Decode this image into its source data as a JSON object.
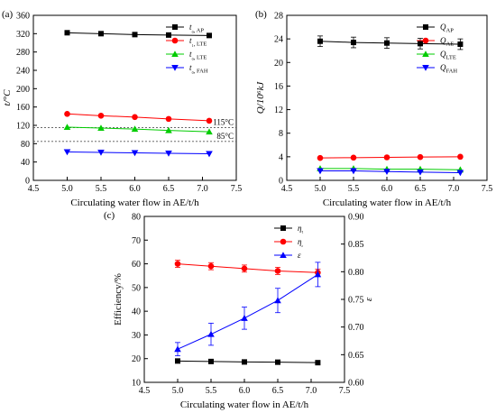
{
  "chart_data": [
    {
      "type": "line",
      "panel_label": "(a)",
      "xlabel": "Circulating water flow in AE/t/h",
      "ylabel": "t/°C",
      "xlim": [
        4.5,
        7.5
      ],
      "ylim": [
        0,
        360
      ],
      "x_ticks": [
        "4.5",
        "5.0",
        "5.5",
        "6.0",
        "6.5",
        "7.0",
        "7.5"
      ],
      "y_ticks": [
        "0",
        "40",
        "80",
        "120",
        "160",
        "200",
        "240",
        "280",
        "320",
        "360"
      ],
      "x": [
        5.0,
        5.5,
        6.0,
        6.5,
        7.1
      ],
      "series": [
        {
          "name": "t₀, AP",
          "marker": "square",
          "color": "#000000",
          "values": [
            322,
            320,
            318,
            317,
            316
          ]
        },
        {
          "name": "t₁, LTE",
          "marker": "circle",
          "color": "#ff0000",
          "values": [
            145,
            141,
            138,
            134,
            130
          ]
        },
        {
          "name": "t₀, LTE",
          "marker": "triangle-up",
          "color": "#00cc00",
          "values": [
            116,
            114,
            112,
            109,
            106
          ]
        },
        {
          "name": "t₀, FAH",
          "marker": "triangle-down",
          "color": "#0000ff",
          "values": [
            62,
            61,
            60,
            59,
            58
          ]
        }
      ],
      "reference_lines": [
        {
          "label": "115°C",
          "value": 115,
          "color": "#555555"
        },
        {
          "label": "85°C",
          "value": 85,
          "color": "#555555"
        }
      ],
      "legend_position": "top-right"
    },
    {
      "type": "line",
      "panel_label": "(b)",
      "xlabel": "Circulating water flow in AE/t/h",
      "ylabel": "Q/10⁶kJ",
      "xlim": [
        4.5,
        7.5
      ],
      "ylim": [
        0,
        28
      ],
      "x_ticks": [
        "4.5",
        "5.0",
        "5.5",
        "6.0",
        "6.5",
        "7.0",
        "7.5"
      ],
      "y_ticks": [
        "0",
        "4",
        "8",
        "12",
        "16",
        "20",
        "24",
        "28"
      ],
      "x": [
        5.0,
        5.5,
        6.0,
        6.5,
        7.1
      ],
      "series": [
        {
          "name": "Q_AP",
          "marker": "square",
          "color": "#000000",
          "values": [
            23.6,
            23.4,
            23.3,
            23.2,
            23.1
          ],
          "error": [
            0.9,
            0.9,
            0.9,
            0.9,
            0.9
          ]
        },
        {
          "name": "Q_AE",
          "marker": "circle",
          "color": "#ff0000",
          "values": [
            3.8,
            3.85,
            3.9,
            3.95,
            4.0
          ]
        },
        {
          "name": "Q_LTE",
          "marker": "triangle-up",
          "color": "#00cc00",
          "values": [
            2.0,
            2.0,
            1.9,
            1.9,
            1.8
          ]
        },
        {
          "name": "Q_FAH",
          "marker": "triangle-down",
          "color": "#0000ff",
          "values": [
            1.6,
            1.6,
            1.5,
            1.4,
            1.3
          ]
        }
      ],
      "legend_position": "top-right"
    },
    {
      "type": "line",
      "panel_label": "(c)",
      "xlabel": "Circulating water flow in AE/t/h",
      "ylabel": "Efficiency/%",
      "y2label": "ε",
      "xlim": [
        4.5,
        7.5
      ],
      "ylim": [
        10,
        80
      ],
      "y2lim": [
        0.6,
        0.9
      ],
      "x_ticks": [
        "4.5",
        "5.0",
        "5.5",
        "6.0",
        "6.5",
        "7.0",
        "7.5"
      ],
      "y_ticks": [
        "10",
        "20",
        "30",
        "40",
        "50",
        "60",
        "70",
        "80"
      ],
      "y2_ticks": [
        "0.60",
        "0.65",
        "0.70",
        "0.75",
        "0.80",
        "0.85",
        "0.90"
      ],
      "x": [
        5.0,
        5.5,
        6.0,
        6.5,
        7.1
      ],
      "series": [
        {
          "name": "ηₜ",
          "marker": "square",
          "color": "#000000",
          "axis": "left",
          "values": [
            19.0,
            18.8,
            18.6,
            18.5,
            18.3
          ]
        },
        {
          "name": "ηₑ",
          "marker": "circle",
          "color": "#ff0000",
          "axis": "left",
          "values": [
            60,
            59,
            58,
            57,
            56.3
          ],
          "error": [
            1.5,
            1.5,
            1.5,
            1.5,
            1.5
          ]
        },
        {
          "name": "ε",
          "marker": "triangle-up",
          "color": "#0000ff",
          "axis": "right",
          "values": [
            0.66,
            0.687,
            0.716,
            0.748,
            0.795
          ],
          "error": [
            0.012,
            0.02,
            0.02,
            0.022,
            0.022
          ]
        }
      ],
      "legend_position": "top-right"
    }
  ]
}
